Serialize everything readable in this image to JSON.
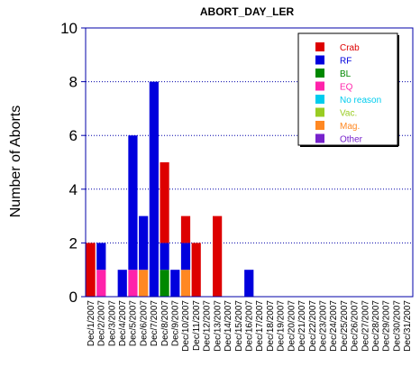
{
  "chart_data": {
    "type": "bar",
    "stacked": true,
    "title": "ABORT_DAY_LER",
    "ylabel": "Number of Aborts",
    "xlabel": "",
    "ylim": [
      0,
      10
    ],
    "yticks": [
      0,
      2,
      4,
      6,
      8,
      10
    ],
    "grid": "horizontal dotted",
    "legend_position": "top-right",
    "categories": [
      "Dec/1/2007",
      "Dec/2/2007",
      "Dec/3/2007",
      "Dec/4/2007",
      "Dec/5/2007",
      "Dec/6/2007",
      "Dec/7/2007",
      "Dec/8/2007",
      "Dec/9/2007",
      "Dec/10/2007",
      "Dec/11/2007",
      "Dec/12/2007",
      "Dec/13/2007",
      "Dec/14/2007",
      "Dec/15/2007",
      "Dec/16/2007",
      "Dec/17/2007",
      "Dec/18/2007",
      "Dec/19/2007",
      "Dec/20/2007",
      "Dec/21/2007",
      "Dec/22/2007",
      "Dec/23/2007",
      "Dec/24/2007",
      "Dec/25/2007",
      "Dec/26/2007",
      "Dec/27/2007",
      "Dec/28/2007",
      "Dec/29/2007",
      "Dec/30/2007",
      "Dec/31/2007"
    ],
    "series": [
      {
        "name": "Crab",
        "color": "#dd0000",
        "values": [
          2,
          0,
          0,
          0,
          0,
          0,
          0,
          3,
          0,
          1,
          2,
          0,
          3,
          0,
          0,
          0,
          0,
          0,
          0,
          0,
          0,
          0,
          0,
          0,
          0,
          0,
          0,
          0,
          0,
          0,
          0
        ]
      },
      {
        "name": "RF",
        "color": "#0000dd",
        "values": [
          0,
          1,
          0,
          1,
          5,
          2,
          8,
          1,
          1,
          1,
          0,
          0,
          0,
          0,
          0,
          1,
          0,
          0,
          0,
          0,
          0,
          0,
          0,
          0,
          0,
          0,
          0,
          0,
          0,
          0,
          0
        ]
      },
      {
        "name": "BL",
        "color": "#008800",
        "values": [
          0,
          0,
          0,
          0,
          0,
          0,
          0,
          1,
          0,
          0,
          0,
          0,
          0,
          0,
          0,
          0,
          0,
          0,
          0,
          0,
          0,
          0,
          0,
          0,
          0,
          0,
          0,
          0,
          0,
          0,
          0
        ]
      },
      {
        "name": "EQ",
        "color": "#ff22aa",
        "values": [
          0,
          1,
          0,
          0,
          1,
          0,
          0,
          0,
          0,
          0,
          0,
          0,
          0,
          0,
          0,
          0,
          0,
          0,
          0,
          0,
          0,
          0,
          0,
          0,
          0,
          0,
          0,
          0,
          0,
          0,
          0
        ]
      },
      {
        "name": "No reason",
        "color": "#00ccee",
        "values": [
          0,
          0,
          0,
          0,
          0,
          0,
          0,
          0,
          0,
          0,
          0,
          0,
          0,
          0,
          0,
          0,
          0,
          0,
          0,
          0,
          0,
          0,
          0,
          0,
          0,
          0,
          0,
          0,
          0,
          0,
          0
        ]
      },
      {
        "name": "Vac.",
        "color": "#99cc22",
        "values": [
          0,
          0,
          0,
          0,
          0,
          0,
          0,
          0,
          0,
          0,
          0,
          0,
          0,
          0,
          0,
          0,
          0,
          0,
          0,
          0,
          0,
          0,
          0,
          0,
          0,
          0,
          0,
          0,
          0,
          0,
          0
        ]
      },
      {
        "name": "Mag.",
        "color": "#ff8822",
        "values": [
          0,
          0,
          0,
          0,
          0,
          1,
          0,
          0,
          0,
          1,
          0,
          0,
          0,
          0,
          0,
          0,
          0,
          0,
          0,
          0,
          0,
          0,
          0,
          0,
          0,
          0,
          0,
          0,
          0,
          0,
          0
        ]
      },
      {
        "name": "Other",
        "color": "#7722cc",
        "values": [
          0,
          0,
          0,
          0,
          0,
          0,
          0,
          0,
          0,
          0,
          0,
          0,
          0,
          0,
          0,
          0,
          0,
          0,
          0,
          0,
          0,
          0,
          0,
          0,
          0,
          0,
          0,
          0,
          0,
          0,
          0
        ]
      }
    ],
    "stack_order": [
      "EQ",
      "Mag.",
      "BL",
      "RF",
      "Crab",
      "No reason",
      "Vac.",
      "Other"
    ],
    "axis_color": "#0000aa"
  }
}
